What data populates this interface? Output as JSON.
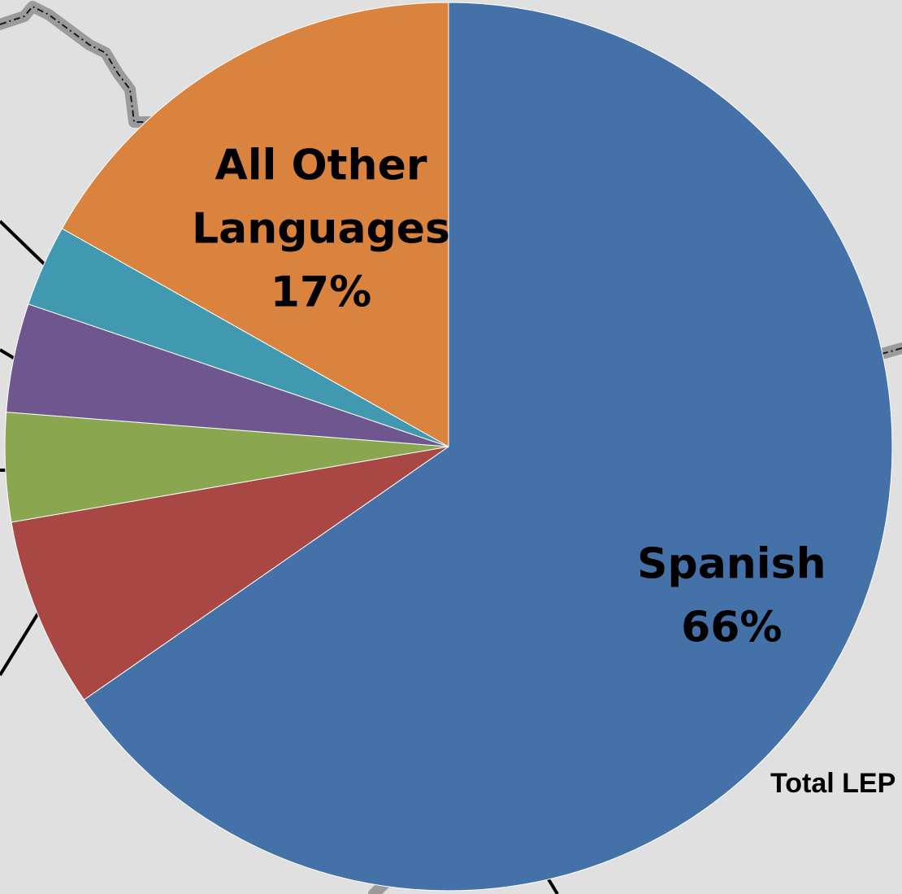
{
  "chart_data": {
    "type": "pie",
    "start_angle_deg": 0,
    "direction": "clockwise",
    "slices": [
      {
        "label": "Spanish",
        "value": 66,
        "value_text": "66%",
        "color": "#4472a8"
      },
      {
        "label": "",
        "value": 7,
        "value_text": "",
        "color": "#a94745"
      },
      {
        "label": "",
        "value": 4,
        "value_text": "",
        "color": "#8aa64f"
      },
      {
        "label": "",
        "value": 4,
        "value_text": "",
        "color": "#6e568e"
      },
      {
        "label": "",
        "value": 3,
        "value_text": "",
        "color": "#4199b1"
      },
      {
        "label": "All Other Languages",
        "value": 17,
        "value_text": "17%",
        "color": "#da833e"
      }
    ],
    "annotation": "Total LEP ("
  },
  "colors": {
    "background": "#e0e0e0",
    "map_border": "#9b9b9b",
    "leader_line": "#000000"
  }
}
